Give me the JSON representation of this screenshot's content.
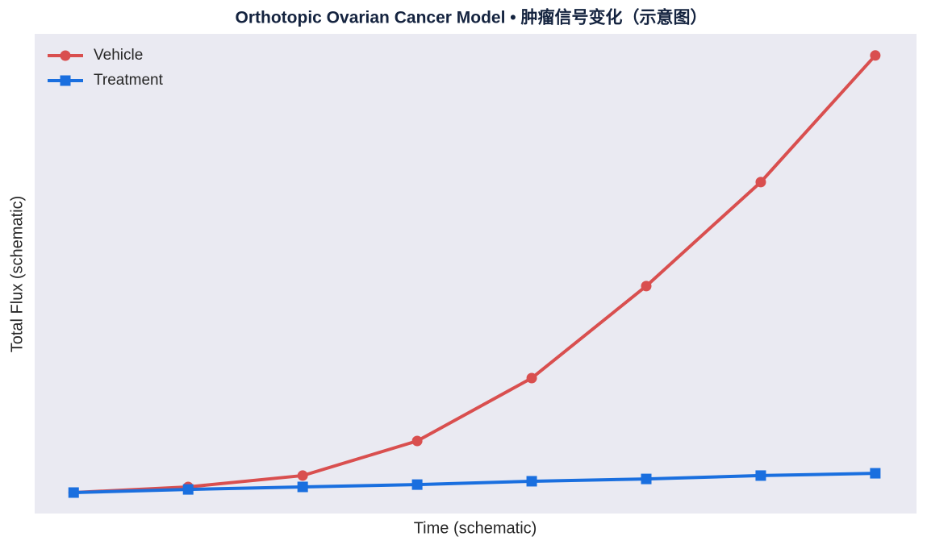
{
  "chart_data": {
    "type": "line",
    "title": "Orthotopic Ovarian Cancer Model • 肿瘤信号变化（示意图）",
    "xlabel": "Time (schematic)",
    "ylabel": "Total Flux (schematic)",
    "x": [
      0,
      1,
      2,
      3,
      4,
      5,
      6,
      7
    ],
    "xlim": [
      -0.34,
      7.36
    ],
    "ylim": [
      0,
      22.88
    ],
    "legend": "upper left",
    "background": "#eaeaf2",
    "series": [
      {
        "name": "Vehicle",
        "color": "#d94f4f",
        "marker": "circle",
        "values": [
          1,
          1.27,
          1.81,
          3.46,
          6.46,
          10.85,
          15.81,
          21.85
        ]
      },
      {
        "name": "Treatment",
        "color": "#1a6fdf",
        "marker": "square",
        "values": [
          1,
          1.15,
          1.27,
          1.38,
          1.54,
          1.65,
          1.81,
          1.92
        ]
      }
    ]
  }
}
